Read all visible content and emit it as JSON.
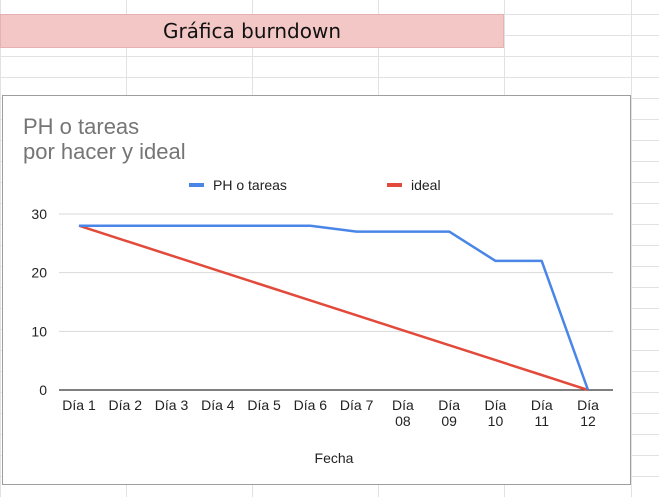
{
  "sheet": {
    "banner_text": "Gráfica burndown"
  },
  "chart_data": {
    "type": "line",
    "title": [
      "PH o tareas",
      "por hacer y ideal"
    ],
    "xlabel": "Fecha",
    "ylabel": "",
    "categories": [
      "Día 1",
      "Día 2",
      "Día 3",
      "Día 4",
      "Día 5",
      "Día 6",
      "Día 7",
      "Día 08",
      "Día 09",
      "Día 10",
      "Día 11",
      "Día 12"
    ],
    "category_lines": [
      [
        "Día 1"
      ],
      [
        "Día 2"
      ],
      [
        "Día 3"
      ],
      [
        "Día 4"
      ],
      [
        "Día 5"
      ],
      [
        "Día 6"
      ],
      [
        "Día 7"
      ],
      [
        "Día",
        "08"
      ],
      [
        "Día",
        "09"
      ],
      [
        "Día",
        "10"
      ],
      [
        "Día",
        "11"
      ],
      [
        "Día",
        "12"
      ]
    ],
    "ylim": [
      0,
      30
    ],
    "yticks": [
      0,
      10,
      20,
      30
    ],
    "grid": true,
    "legend_position": "top",
    "series": [
      {
        "name": "PH o tareas",
        "color": "#4a86e8",
        "values": [
          28,
          28,
          28,
          28,
          28,
          28,
          27,
          27,
          27,
          22,
          22,
          0
        ]
      },
      {
        "name": "ideal",
        "color": "#e24b3b",
        "values": [
          28,
          25.45,
          22.91,
          20.36,
          17.82,
          15.27,
          12.73,
          10.18,
          7.64,
          5.09,
          2.55,
          0
        ]
      }
    ]
  }
}
